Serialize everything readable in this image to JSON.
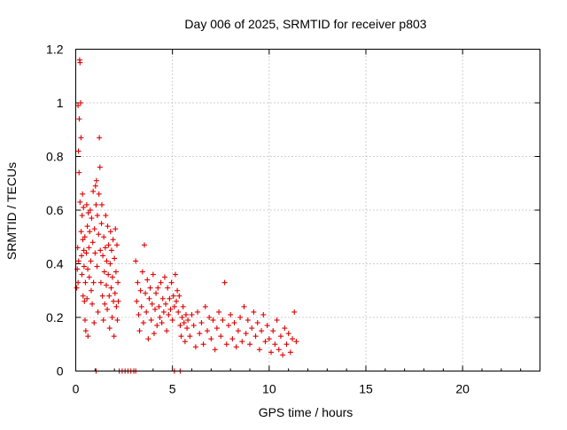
{
  "chart_data": {
    "type": "scatter",
    "title": "Day 006 of 2025, SRMTID for receiver p803",
    "xlabel": "GPS time / hours",
    "ylabel": "SRMTID / TECUs",
    "xlim": [
      0,
      24
    ],
    "ylim": [
      0,
      1.2
    ],
    "x_ticks": [
      0,
      5,
      10,
      15,
      20
    ],
    "x_tick_labels": [
      "0",
      "5",
      "10",
      "15",
      "20"
    ],
    "y_ticks": [
      0,
      0.2,
      0.4,
      0.6,
      0.8,
      1,
      1.2
    ],
    "y_tick_labels": [
      "0",
      "0.2",
      "0.4",
      "0.6",
      "0.8",
      "1",
      "1.2"
    ],
    "grid": true,
    "marker": "plus",
    "marker_color": "#e00000",
    "series": [
      {
        "name": "SRMTID",
        "points": [
          [
            0.05,
            0.31
          ],
          [
            0.08,
            0.38
          ],
          [
            0.1,
            0.46
          ],
          [
            0.12,
            0.33
          ],
          [
            0.12,
            0.99
          ],
          [
            0.14,
            0.82
          ],
          [
            0.15,
            0.41
          ],
          [
            0.17,
            0.74
          ],
          [
            0.18,
            0.94
          ],
          [
            0.2,
            1.16
          ],
          [
            0.22,
            1.15
          ],
          [
            0.22,
            0.63
          ],
          [
            0.25,
            1.0
          ],
          [
            0.27,
            0.87
          ],
          [
            0.28,
            0.52
          ],
          [
            0.3,
            0.43
          ],
          [
            0.32,
            0.36
          ],
          [
            0.33,
            0.58
          ],
          [
            0.35,
            0.66
          ],
          [
            0.37,
            0.49
          ],
          [
            0.38,
            0.28
          ],
          [
            0.4,
            0.61
          ],
          [
            0.42,
            0.45
          ],
          [
            0.43,
            0.39
          ],
          [
            0.45,
            0.26
          ],
          [
            0.47,
            0.5
          ],
          [
            0.48,
            0.19
          ],
          [
            0.5,
            0.33
          ],
          [
            0.52,
            0.15
          ],
          [
            0.55,
            0.44
          ],
          [
            0.57,
            0.62
          ],
          [
            0.58,
            0.27
          ],
          [
            0.6,
            0.54
          ],
          [
            0.62,
            0.38
          ],
          [
            0.63,
            0.13
          ],
          [
            0.65,
            0.59
          ],
          [
            0.68,
            0.46
          ],
          [
            0.7,
            0.35
          ],
          [
            0.72,
            0.52
          ],
          [
            0.75,
            0.6
          ],
          [
            0.78,
            0.41
          ],
          [
            0.8,
            0.3
          ],
          [
            0.82,
            0.57
          ],
          [
            0.85,
            0.25
          ],
          [
            0.88,
            0.48
          ],
          [
            0.9,
            0.67
          ],
          [
            0.92,
            0.33
          ],
          [
            0.95,
            0.18
          ],
          [
            0.97,
            0.53
          ],
          [
            1.0,
            0.44
          ],
          [
            1.02,
            0.69
          ],
          [
            1.05,
            0.62
          ],
          [
            1.07,
            0.71
          ],
          [
            1.1,
            0.39
          ],
          [
            1.12,
            0.58
          ],
          [
            1.15,
            0.22
          ],
          [
            1.18,
            0.51
          ],
          [
            1.2,
            0.66
          ],
          [
            1.22,
            0.87
          ],
          [
            1.25,
            0.76
          ],
          [
            1.27,
            0.45
          ],
          [
            1.3,
            0.33
          ],
          [
            1.33,
            0.55
          ],
          [
            1.35,
            0.62
          ],
          [
            1.38,
            0.28
          ],
          [
            1.4,
            0.43
          ],
          [
            1.43,
            0.19
          ],
          [
            1.45,
            0.5
          ],
          [
            1.48,
            0.37
          ],
          [
            1.5,
            0.25
          ],
          [
            1.53,
            0.46
          ],
          [
            1.55,
            0.58
          ],
          [
            1.58,
            0.32
          ],
          [
            1.6,
            0.41
          ],
          [
            1.63,
            0.23
          ],
          [
            1.65,
            0.54
          ],
          [
            1.68,
            0.36
          ],
          [
            1.7,
            0.47
          ],
          [
            1.73,
            0.28
          ],
          [
            1.75,
            0.16
          ],
          [
            1.78,
            0.4
          ],
          [
            1.8,
            0.52
          ],
          [
            1.83,
            0.31
          ],
          [
            1.85,
            0.45
          ],
          [
            1.88,
            0.2
          ],
          [
            1.9,
            0.35
          ],
          [
            1.93,
            0.49
          ],
          [
            1.95,
            0.26
          ],
          [
            1.98,
            0.13
          ],
          [
            2.0,
            0.42
          ],
          [
            2.03,
            0.29
          ],
          [
            2.05,
            0.53
          ],
          [
            2.08,
            0.37
          ],
          [
            2.1,
            0.24
          ],
          [
            2.13,
            0.47
          ],
          [
            2.15,
            0.19
          ],
          [
            2.18,
            0.33
          ],
          [
            2.2,
            0.26
          ],
          [
            3.1,
            0.41
          ],
          [
            3.15,
            0.26
          ],
          [
            3.2,
            0.33
          ],
          [
            3.25,
            0.21
          ],
          [
            3.3,
            0.15
          ],
          [
            3.35,
            0.3
          ],
          [
            3.4,
            0.24
          ],
          [
            3.45,
            0.37
          ],
          [
            3.5,
            0.18
          ],
          [
            3.55,
            0.47
          ],
          [
            3.6,
            0.29
          ],
          [
            3.65,
            0.22
          ],
          [
            3.7,
            0.34
          ],
          [
            3.75,
            0.12
          ],
          [
            3.8,
            0.27
          ],
          [
            3.85,
            0.31
          ],
          [
            3.9,
            0.19
          ],
          [
            3.95,
            0.25
          ],
          [
            4.0,
            0.36
          ],
          [
            4.05,
            0.14
          ],
          [
            4.1,
            0.23
          ],
          [
            4.15,
            0.29
          ],
          [
            4.2,
            0.17
          ],
          [
            4.25,
            0.31
          ],
          [
            4.3,
            0.24
          ],
          [
            4.35,
            0.2
          ],
          [
            4.4,
            0.33
          ],
          [
            4.45,
            0.18
          ],
          [
            4.5,
            0.27
          ],
          [
            4.55,
            0.22
          ],
          [
            4.6,
            0.35
          ],
          [
            4.65,
            0.25
          ],
          [
            4.7,
            0.15
          ],
          [
            4.75,
            0.31
          ],
          [
            4.8,
            0.21
          ],
          [
            4.85,
            0.27
          ],
          [
            4.9,
            0.23
          ],
          [
            4.95,
            0.33
          ],
          [
            5.0,
            0.19
          ],
          [
            5.05,
            0.28
          ],
          [
            5.1,
            0.24
          ],
          [
            5.15,
            0.36
          ],
          [
            5.2,
            0.26
          ],
          [
            5.25,
            0.3
          ],
          [
            5.3,
            0.22
          ],
          [
            5.35,
            0.28
          ],
          [
            5.4,
            0.17
          ],
          [
            5.45,
            0.13
          ],
          [
            5.5,
            0.2
          ],
          [
            5.55,
            0.24
          ],
          [
            5.6,
            0.18
          ],
          [
            5.65,
            0.11
          ],
          [
            5.7,
            0.21
          ],
          [
            5.75,
            0.16
          ],
          [
            5.8,
            0.19
          ],
          [
            5.9,
            0.13
          ],
          [
            6.0,
            0.21
          ],
          [
            6.1,
            0.17
          ],
          [
            6.2,
            0.09
          ],
          [
            6.3,
            0.22
          ],
          [
            6.4,
            0.14
          ],
          [
            6.5,
            0.18
          ],
          [
            6.6,
            0.1
          ],
          [
            6.7,
            0.24
          ],
          [
            6.8,
            0.15
          ],
          [
            6.9,
            0.2
          ],
          [
            7.0,
            0.12
          ],
          [
            7.1,
            0.19
          ],
          [
            7.2,
            0.08
          ],
          [
            7.3,
            0.16
          ],
          [
            7.4,
            0.22
          ],
          [
            7.5,
            0.13
          ],
          [
            7.6,
            0.19
          ],
          [
            7.7,
            0.33
          ],
          [
            7.8,
            0.1
          ],
          [
            7.9,
            0.17
          ],
          [
            8.0,
            0.21
          ],
          [
            8.1,
            0.12
          ],
          [
            8.2,
            0.18
          ],
          [
            8.3,
            0.09
          ],
          [
            8.4,
            0.15
          ],
          [
            8.5,
            0.2
          ],
          [
            8.6,
            0.11
          ],
          [
            8.7,
            0.24
          ],
          [
            8.8,
            0.14
          ],
          [
            8.9,
            0.19
          ],
          [
            9.0,
            0.1
          ],
          [
            9.1,
            0.16
          ],
          [
            9.2,
            0.22
          ],
          [
            9.3,
            0.13
          ],
          [
            9.4,
            0.18
          ],
          [
            9.5,
            0.08
          ],
          [
            9.6,
            0.15
          ],
          [
            9.7,
            0.21
          ],
          [
            9.8,
            0.11
          ],
          [
            9.9,
            0.17
          ],
          [
            10.0,
            0.12
          ],
          [
            10.1,
            0.07
          ],
          [
            10.2,
            0.15
          ],
          [
            10.3,
            0.1
          ],
          [
            10.4,
            0.19
          ],
          [
            10.5,
            0.08
          ],
          [
            10.6,
            0.13
          ],
          [
            10.7,
            0.06
          ],
          [
            10.8,
            0.16
          ],
          [
            10.9,
            0.1
          ],
          [
            11.0,
            0.14
          ],
          [
            11.1,
            0.07
          ],
          [
            11.2,
            0.12
          ],
          [
            11.3,
            0.22
          ],
          [
            11.4,
            0.11
          ],
          [
            1.05,
            0.0
          ],
          [
            2.25,
            0.0
          ],
          [
            2.4,
            0.0
          ],
          [
            2.55,
            0.0
          ],
          [
            2.7,
            0.0
          ],
          [
            2.85,
            0.0
          ],
          [
            3.0,
            0.0
          ],
          [
            3.1,
            0.0
          ],
          [
            5.1,
            0.0
          ],
          [
            5.4,
            0.0
          ]
        ]
      }
    ]
  }
}
